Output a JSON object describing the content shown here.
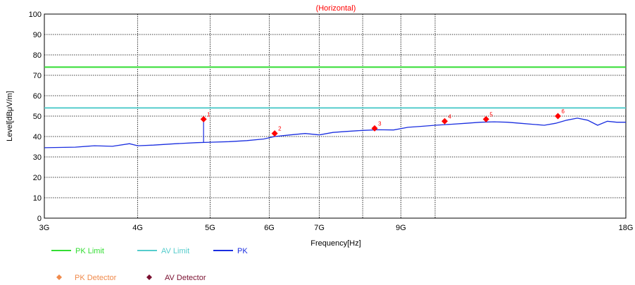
{
  "chart_data": {
    "type": "line",
    "title": "(Horizontal)",
    "xlabel": "Frequency[Hz]",
    "ylabel": "Level[dBμV/m]",
    "x_scale": "log",
    "xlim_ghz": [
      3,
      18
    ],
    "ylim": [
      0,
      100
    ],
    "grid": true,
    "x_ticks": [
      {
        "value": 3,
        "label": "3G"
      },
      {
        "value": 4,
        "label": "4G"
      },
      {
        "value": 5,
        "label": "5G"
      },
      {
        "value": 6,
        "label": "6G"
      },
      {
        "value": 7,
        "label": "7G"
      },
      {
        "value": 9,
        "label": "9G"
      },
      {
        "value": 18,
        "label": "18G"
      }
    ],
    "x_minor_grid_ghz": [
      8,
      10
    ],
    "y_ticks": [
      0,
      10,
      20,
      30,
      40,
      50,
      60,
      70,
      80,
      90,
      100
    ],
    "limits": [
      {
        "name": "PK Limit",
        "value": 74,
        "color": "#33dd33"
      },
      {
        "name": "AV Limit",
        "value": 54,
        "color": "#55cccc"
      }
    ],
    "series": [
      {
        "name": "PK",
        "color": "#1a2ee0",
        "x_ghz": [
          3.0,
          3.3,
          3.5,
          3.7,
          3.9,
          4.0,
          4.2,
          4.5,
          4.8,
          5.0,
          5.3,
          5.6,
          5.9,
          6.1,
          6.4,
          6.7,
          7.0,
          7.3,
          7.6,
          8.0,
          8.4,
          8.8,
          9.2,
          9.6,
          10.0,
          10.5,
          11.0,
          11.5,
          12.0,
          12.5,
          13.0,
          13.5,
          14.0,
          14.5,
          15.0,
          15.5,
          16.0,
          16.5,
          17.0,
          17.5,
          18.0
        ],
        "y": [
          34.5,
          34.8,
          35.5,
          35.2,
          36.5,
          35.5,
          35.8,
          36.5,
          37.0,
          37.2,
          37.5,
          38.0,
          38.8,
          40.0,
          40.8,
          41.5,
          40.8,
          42.0,
          42.5,
          43.0,
          43.3,
          43.2,
          44.5,
          45.0,
          45.5,
          46.0,
          46.5,
          47.0,
          47.2,
          47.0,
          46.5,
          46.0,
          45.5,
          46.5,
          48.0,
          49.0,
          48.0,
          45.5,
          47.5,
          47.0,
          47.0
        ]
      }
    ],
    "spikes": [
      {
        "x_ghz": 4.9,
        "y": 48.5
      }
    ],
    "markers": [
      {
        "label": "1",
        "x_ghz": 4.9,
        "y": 48.5
      },
      {
        "label": "2",
        "x_ghz": 6.1,
        "y": 41.5
      },
      {
        "label": "3",
        "x_ghz": 8.3,
        "y": 44.0
      },
      {
        "label": "4",
        "x_ghz": 10.3,
        "y": 47.5
      },
      {
        "label": "5",
        "x_ghz": 11.7,
        "y": 48.5
      },
      {
        "label": "6",
        "x_ghz": 14.6,
        "y": 50.0
      }
    ],
    "legend": [
      {
        "label": "PK Limit",
        "color": "#33dd33",
        "style": "line"
      },
      {
        "label": "AV Limit",
        "color": "#55cccc",
        "style": "line"
      },
      {
        "label": "PK",
        "color": "#1a2ee0",
        "style": "line"
      },
      {
        "label": "PK Detector",
        "color": "#f08a4b",
        "style": "diamond"
      },
      {
        "label": "AV Detector",
        "color": "#7a1030",
        "style": "diamond"
      }
    ],
    "marker_color": "#ff0000",
    "legend_position": "bottom"
  }
}
